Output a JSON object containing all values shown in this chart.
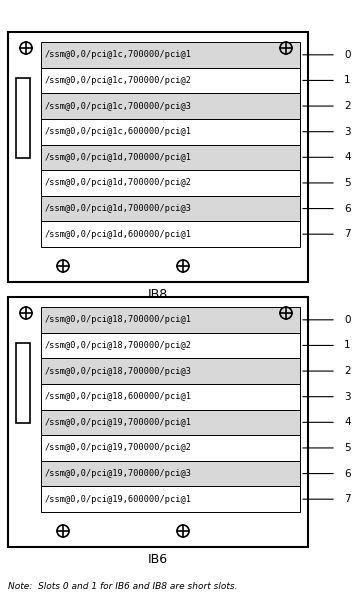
{
  "background": "#ffffff",
  "ib8_label": "IB8",
  "ib6_label": "IB6",
  "note": "Note:  Slots 0 and 1 for IB6 and IB8 are short slots.",
  "ib8_slots": [
    "/ssm@0,0/pci@1c,700000/pci@1",
    "/ssm@0,0/pci@1c,700000/pci@2",
    "/ssm@0,0/pci@1c,700000/pci@3",
    "/ssm@0,0/pci@1c,600000/pci@1",
    "/ssm@0,0/pci@1d,700000/pci@1",
    "/ssm@0,0/pci@1d,700000/pci@2",
    "/ssm@0,0/pci@1d,700000/pci@3",
    "/ssm@0,0/pci@1d,600000/pci@1"
  ],
  "ib6_slots": [
    "/ssm@0,0/pci@18,700000/pci@1",
    "/ssm@0,0/pci@18,700000/pci@2",
    "/ssm@0,0/pci@18,700000/pci@3",
    "/ssm@0,0/pci@18,600000/pci@1",
    "/ssm@0,0/pci@19,700000/pci@1",
    "/ssm@0,0/pci@19,700000/pci@2",
    "/ssm@0,0/pci@19,700000/pci@3",
    "/ssm@0,0/pci@19,600000/pci@1"
  ],
  "slot_numbers": [
    "0",
    "1",
    "2",
    "3",
    "4",
    "5",
    "6",
    "7"
  ],
  "slot_fill_even": "#d8d8d8",
  "slot_fill_odd": "#ffffff",
  "figw": 3.6,
  "figh": 6.12,
  "dpi": 100
}
